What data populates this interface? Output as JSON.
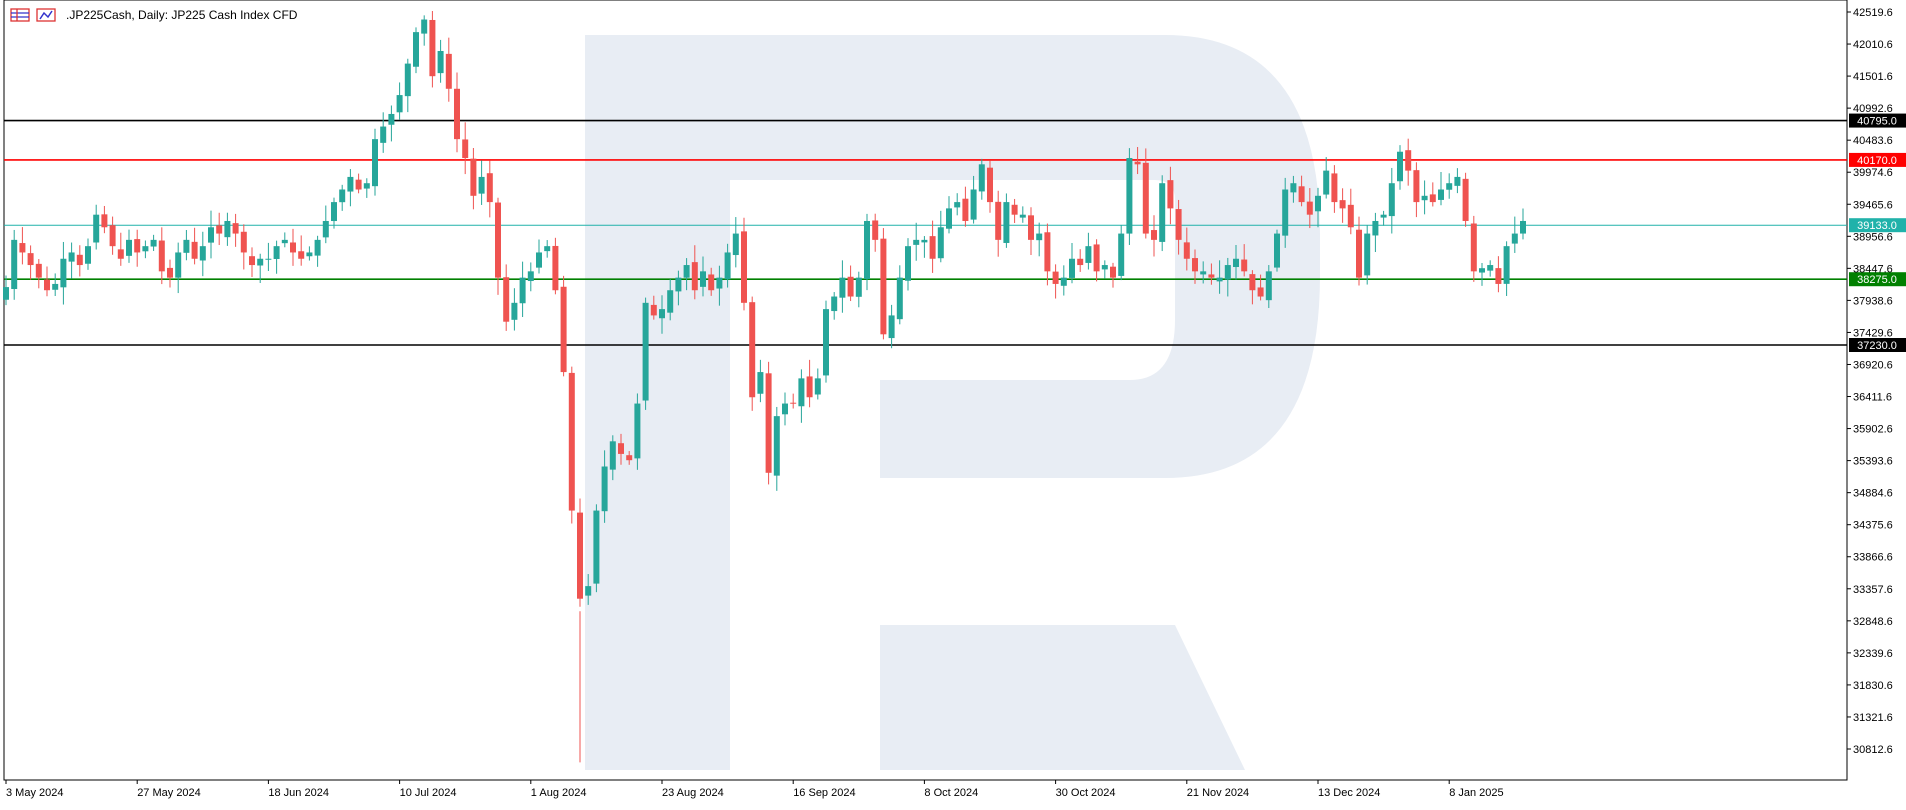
{
  "header": {
    "symbol": ".JP225Cash",
    "timeframe": "Daily",
    "description": "JP225 Cash Index CFD",
    "title": ".JP225Cash, Daily:  JP225 Cash Index CFD",
    "icons": [
      "table-icon",
      "chart-icon"
    ]
  },
  "chart_data": {
    "type": "candlestick",
    "title": ".JP225Cash, Daily:  JP225 Cash Index CFD",
    "ylim": [
      30500,
      42700
    ],
    "y_ticks": [
      "42519.6",
      "42010.6",
      "41501.6",
      "40992.6",
      "40483.6",
      "39974.6",
      "39465.6",
      "38956.6",
      "38447.6",
      "37938.6",
      "37429.6",
      "36920.6",
      "36411.6",
      "35902.6",
      "35393.6",
      "34884.6",
      "34375.6",
      "33866.6",
      "33357.6",
      "32848.6",
      "32339.6",
      "31830.6",
      "31321.6",
      "30812.6"
    ],
    "x_ticks": [
      {
        "label": "3 May 2024",
        "index": 0
      },
      {
        "label": "27 May 2024",
        "index": 16
      },
      {
        "label": "18 Jun 2024",
        "index": 32
      },
      {
        "label": "10 Jul 2024",
        "index": 48
      },
      {
        "label": "1 Aug 2024",
        "index": 64
      },
      {
        "label": "23 Aug 2024",
        "index": 80
      },
      {
        "label": "16 Sep 2024",
        "index": 96
      },
      {
        "label": "8 Oct 2024",
        "index": 112
      },
      {
        "label": "30 Oct 2024",
        "index": 128
      },
      {
        "label": "21 Nov 2024",
        "index": 144
      },
      {
        "label": "13 Dec 2024",
        "index": 160
      },
      {
        "label": "8 Jan 2025",
        "index": 176
      }
    ],
    "levels": [
      {
        "label": "40795.0",
        "value": 40795,
        "color": "#000000"
      },
      {
        "label": "40170.0",
        "value": 40170,
        "color": "#ff0000"
      },
      {
        "label": "39133.0",
        "value": 39133,
        "color": "#20b2aa"
      },
      {
        "label": "38275.0",
        "value": 38275,
        "color": "#008000"
      },
      {
        "label": "37230.0",
        "value": 37230,
        "color": "#000000"
      }
    ],
    "colors": {
      "up": "#26a69a",
      "down": "#ef5350"
    },
    "closes": [
      38150,
      38900,
      38700,
      38500,
      38300,
      38100,
      38200,
      38600,
      38700,
      38500,
      38800,
      39300,
      39100,
      38800,
      38600,
      38900,
      38700,
      38800,
      38900,
      38400,
      38300,
      38700,
      38900,
      38600,
      38800,
      39100,
      39000,
      39200,
      39000,
      38700,
      38500,
      38600,
      38600,
      38800,
      38900,
      38700,
      38600,
      38700,
      38900,
      39200,
      39500,
      39700,
      39900,
      39700,
      39800,
      40500,
      40700,
      40900,
      41200,
      41700,
      42200,
      42400,
      41500,
      41900,
      41300,
      40500,
      40200,
      39600,
      39900,
      39500,
      38300,
      37600,
      37900,
      38300,
      38400,
      38700,
      38800,
      38100,
      36800,
      34600,
      33200,
      33400,
      34600,
      35300,
      35700,
      35500,
      35400,
      36300,
      37900,
      37700,
      37800,
      38100,
      38300,
      38500,
      38100,
      38400,
      38100,
      38300,
      38700,
      39000,
      37900,
      36400,
      36800,
      35200,
      36100,
      36300,
      36300,
      36700,
      36400,
      36700,
      37800,
      38000,
      38300,
      38000,
      38300,
      39200,
      38900,
      37400,
      37700,
      38300,
      38800,
      38900,
      38900,
      38600,
      39100,
      39400,
      39500,
      39200,
      39700,
      40100,
      39500,
      38900,
      39500,
      39300,
      39300,
      38900,
      39000,
      38400,
      38200,
      38300,
      38600,
      38500,
      38800,
      38400,
      38500,
      38300,
      39000,
      40200,
      40100,
      39000,
      38900,
      39800,
      39400,
      38900,
      38600,
      38400,
      38400,
      38300,
      38300,
      38500,
      38600,
      38400,
      38100,
      38000,
      38400,
      39000,
      39700,
      39800,
      39500,
      39300,
      39600,
      40000,
      39500,
      39400,
      39100,
      38300,
      39000,
      39200,
      39300,
      39800,
      40300,
      40000,
      39500,
      39600,
      39500,
      39700,
      39800,
      39900,
      39200,
      38400,
      38450,
      38500,
      38200,
      38800,
      39000,
      39200
    ]
  }
}
